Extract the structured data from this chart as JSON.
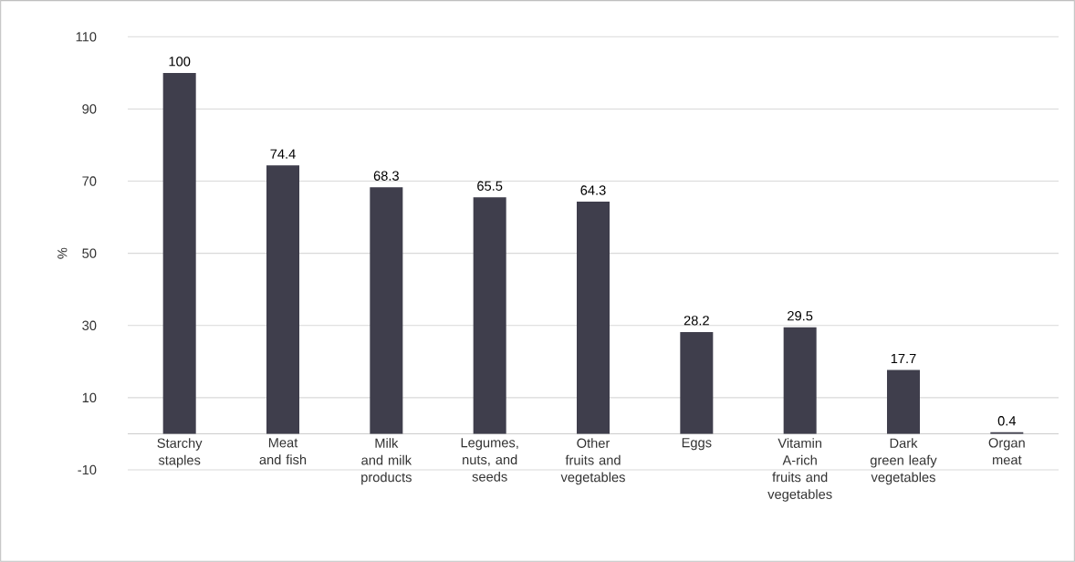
{
  "chart_data": {
    "type": "bar",
    "ylabel": "%",
    "categories": [
      "Starchy staples",
      "Meat and fish",
      "Milk and milk products",
      "Legumes, nuts, and seeds",
      "Other fruits and vegetables",
      "Eggs",
      "Vitamin A-rich fruits and vegetables",
      "Dark green leafy vegetables",
      "Organ meat"
    ],
    "values": [
      100,
      74.4,
      68.3,
      65.5,
      64.3,
      28.2,
      29.5,
      17.7,
      0.4
    ],
    "color": "#3f3e4c",
    "ylim": [
      -10,
      110
    ],
    "yticks": [
      -10,
      10,
      30,
      50,
      70,
      90,
      110
    ],
    "grid": "y",
    "data_labels": true
  }
}
